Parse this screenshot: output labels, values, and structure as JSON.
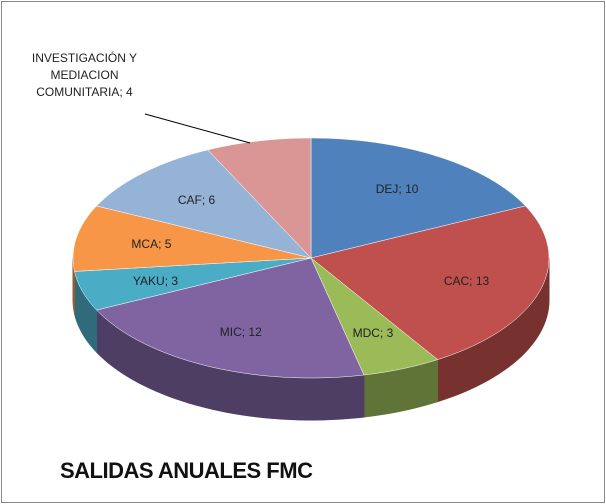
{
  "chart_data": {
    "type": "pie3d",
    "title": "SALIDAS ANUALES FMC",
    "categories": [
      "DEJ",
      "CAC",
      "MDC",
      "MIC",
      "YAKU",
      "MCA",
      "CAF",
      "INVESTIGACIÓN Y MEDIACION COMUNITARIA"
    ],
    "values": [
      10,
      13,
      3,
      12,
      3,
      5,
      6,
      4
    ],
    "value_labels": [
      "DEJ; 10",
      "CAC; 13",
      "MDC; 3",
      "MIC; 12",
      "YAKU; 3",
      "MCA; 5",
      "CAF; 6",
      "INVESTIGACIÓN Y MEDIACION COMUNITARIA; 4"
    ],
    "colors": [
      "#4f81bd",
      "#c0504d",
      "#9bbb59",
      "#8064a2",
      "#4bacc6",
      "#f79646",
      "#95b3d7",
      "#d99694"
    ]
  }
}
